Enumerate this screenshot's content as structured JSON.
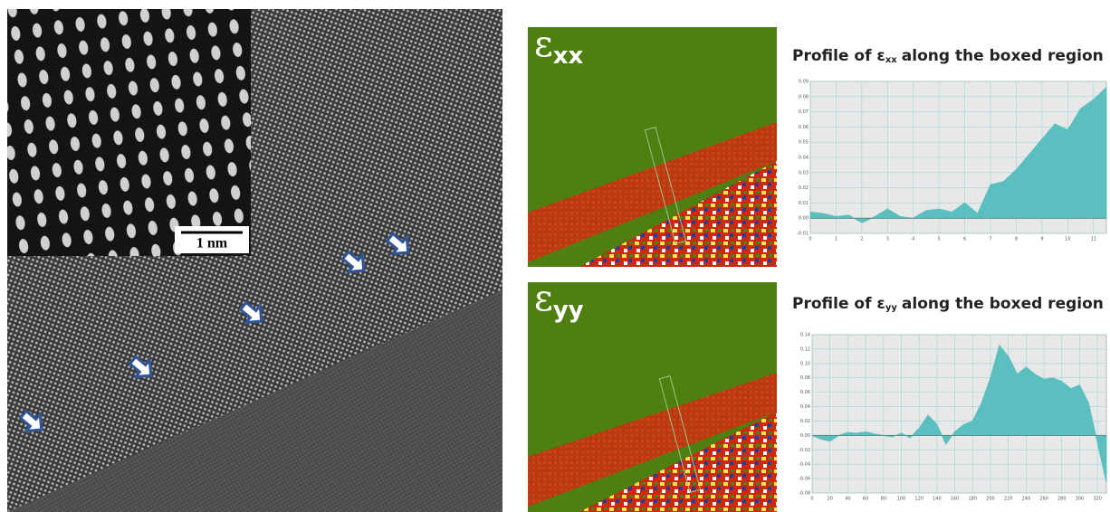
{
  "figure": {
    "scale_bar": "1 nm",
    "maps": [
      {
        "symbol": "ε",
        "subscript": "xx"
      },
      {
        "symbol": "ε",
        "subscript": "yy"
      }
    ]
  },
  "chart_data": [
    {
      "type": "area",
      "title": "Profile of ε",
      "title_subscript": "xx",
      "title_suffix": "along the boxed region",
      "x": [
        0,
        0.5,
        1,
        1.5,
        2,
        2.5,
        3,
        3.5,
        4,
        4.5,
        5,
        5.5,
        6,
        6.5,
        7,
        7.5,
        8,
        8.5,
        9,
        9.5,
        10,
        10.5,
        11,
        11.5
      ],
      "values": [
        0.004,
        0.003,
        0.001,
        0.002,
        -0.003,
        0.001,
        0.006,
        0.001,
        0.0,
        0.005,
        0.006,
        0.004,
        0.01,
        0.003,
        0.022,
        0.024,
        0.032,
        0.042,
        0.052,
        0.062,
        0.058,
        0.072,
        0.078,
        0.086
      ],
      "color": "#5bbfbf",
      "grid": true,
      "xlim": [
        0,
        11.5
      ],
      "ylim": [
        -0.01,
        0.09
      ],
      "xticks": [
        0,
        1,
        2,
        3,
        4,
        5,
        6,
        7,
        8,
        9,
        10,
        11
      ],
      "yticks": [
        -0.01,
        {
          "value": 0,
          "label": "0.00"
        },
        0.01,
        0.02,
        0.03,
        0.04,
        0.05,
        0.06,
        0.07,
        0.08,
        0.09
      ]
    },
    {
      "type": "area",
      "title": "Profile of ε",
      "title_subscript": "yy",
      "title_suffix": "along the boxed region",
      "x": [
        0,
        10,
        20,
        30,
        40,
        50,
        60,
        70,
        80,
        90,
        100,
        110,
        120,
        130,
        140,
        150,
        160,
        170,
        180,
        190,
        200,
        210,
        220,
        230,
        240,
        250,
        260,
        270,
        280,
        290,
        300,
        310,
        320,
        330
      ],
      "values": [
        0.0,
        -0.005,
        -0.008,
        0.0,
        0.004,
        0.003,
        0.005,
        0.002,
        0.0,
        -0.002,
        0.003,
        -0.003,
        0.01,
        0.028,
        0.015,
        -0.012,
        0.005,
        0.015,
        0.02,
        0.045,
        0.08,
        0.125,
        0.11,
        0.085,
        0.095,
        0.085,
        0.078,
        0.08,
        0.075,
        0.065,
        0.07,
        0.045,
        -0.01,
        -0.065
      ],
      "color": "#5bbfbf",
      "grid": true,
      "xlim": [
        0,
        330
      ],
      "ylim": [
        -0.08,
        0.14
      ],
      "xticks": [
        0,
        20,
        40,
        60,
        80,
        100,
        120,
        140,
        160,
        180,
        200,
        220,
        240,
        260,
        280,
        300,
        320
      ],
      "yticks": [
        -0.08,
        -0.06,
        -0.04,
        -0.02,
        {
          "value": 0,
          "label": "0.00"
        },
        0.02,
        0.04,
        0.06,
        0.08,
        {
          "value": 0.1,
          "label": "0.10"
        },
        0.12,
        0.14
      ]
    }
  ]
}
